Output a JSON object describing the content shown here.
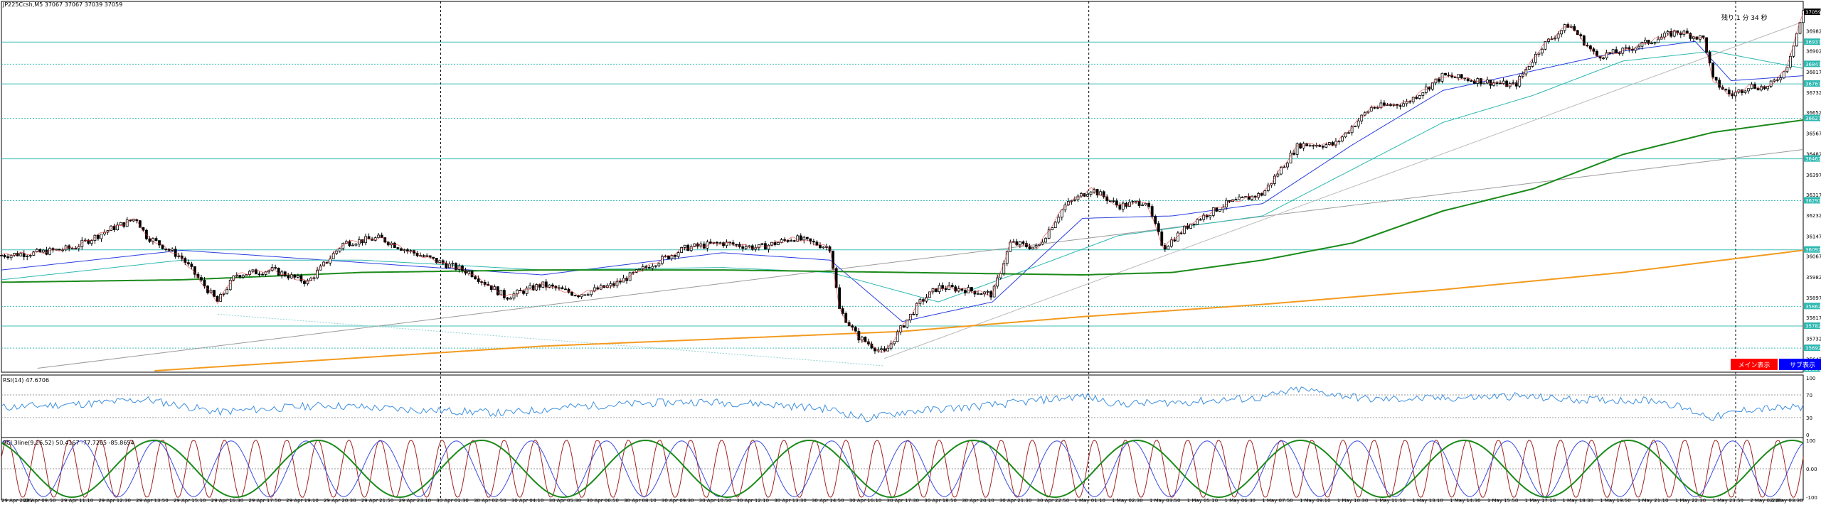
{
  "main_title": "JP225Ccsh,M5  37067 37067 37039 37059",
  "countdown": "残り 1 分 34 秒",
  "rsi_title": "RSI(14) 47.6706",
  "stoch_title": "RCI 3line(9,26,52) 50.4167 -77.7265 -85.8654",
  "colors": {
    "accent_teal": "#2bb7b0",
    "green_ma": "#1a8a1a",
    "orange_ma": "#f39a1d",
    "blue_ma": "#2a3ee0",
    "rsi_line": "#3d8fe0",
    "red_button": "#ff0000",
    "blue_button": "#0000ff",
    "current_price_bg": "#000000"
  },
  "price_axis": {
    "labels": [
      "37067",
      "36982",
      "36902",
      "36817",
      "36732",
      "36652",
      "36567",
      "36482",
      "36397",
      "36317",
      "36232",
      "36147",
      "36067",
      "35982",
      "35897",
      "35817",
      "35732",
      "35647"
    ],
    "highlighted": [
      "37059",
      "36937",
      "36847",
      "36767",
      "36627",
      "36462",
      "36292",
      "36092",
      "35862",
      "35782",
      "35692",
      "35607"
    ],
    "current_price": "37059",
    "min": 35600,
    "max": 37085
  },
  "rsi_axis": {
    "labels": [
      "100",
      "70",
      "30",
      "0"
    ],
    "levels": [
      100,
      70,
      30,
      0
    ]
  },
  "stoch_axis": {
    "labels": [
      "100",
      "0.00",
      "-100"
    ],
    "levels": [
      100,
      0,
      -100
    ]
  },
  "time_axis": [
    "29 Apr 2025",
    "29 Apr 09:50",
    "29 Apr 11:10",
    "29 Apr 12:30",
    "29 Apr 13:50",
    "29 Apr 15:10",
    "29 Apr 16:30",
    "29 Apr 17:50",
    "29 Apr 19:10",
    "29 Apr 20:30",
    "29 Apr 21:50",
    "29 Apr 23:10",
    "30 Apr 01:30",
    "30 Apr 02:50",
    "30 Apr 04:10",
    "30 Apr 05:30",
    "30 Apr 06:50",
    "30 Apr 08:10",
    "30 Apr 09:30",
    "30 Apr 10:50",
    "30 Apr 12:10",
    "30 Apr 13:30",
    "30 Apr 14:50",
    "30 Apr 16:10",
    "30 Apr 17:30",
    "30 Apr 18:50",
    "30 Apr 20:10",
    "30 Apr 21:30",
    "30 Apr 22:50",
    "1 May 01:10",
    "1 May 02:30",
    "1 May 03:50",
    "1 May 05:10",
    "1 May 06:30",
    "1 May 07:50",
    "1 May 09:10",
    "1 May 10:30",
    "1 May 11:50",
    "1 May 13:10",
    "1 May 14:30",
    "1 May 15:50",
    "1 May 17:10",
    "1 May 18:30",
    "1 May 19:50",
    "1 May 21:10",
    "1 May 22:30",
    "1 May 23:50",
    "2 May 02:10",
    "2 May 03:30"
  ],
  "buttons": {
    "main": "メイン表示",
    "sub": "サブ表示"
  },
  "chart_data": {
    "type": "candlestick",
    "timeframe": "M5",
    "symbol": "JP225Ccsh",
    "y_range": [
      35600,
      37085
    ],
    "close_path": [
      [
        0,
        36070
      ],
      [
        0.02,
        36080
      ],
      [
        0.04,
        36100
      ],
      [
        0.06,
        36175
      ],
      [
        0.075,
        36220
      ],
      [
        0.08,
        36150
      ],
      [
        0.1,
        36060
      ],
      [
        0.12,
        35880
      ],
      [
        0.13,
        35990
      ],
      [
        0.15,
        36010
      ],
      [
        0.17,
        35960
      ],
      [
        0.19,
        36120
      ],
      [
        0.21,
        36140
      ],
      [
        0.225,
        36090
      ],
      [
        0.24,
        36050
      ],
      [
        0.26,
        36000
      ],
      [
        0.28,
        35900
      ],
      [
        0.3,
        35950
      ],
      [
        0.32,
        35910
      ],
      [
        0.34,
        35950
      ],
      [
        0.36,
        36030
      ],
      [
        0.38,
        36100
      ],
      [
        0.4,
        36120
      ],
      [
        0.42,
        36100
      ],
      [
        0.44,
        36140
      ],
      [
        0.46,
        36100
      ],
      [
        0.465,
        35850
      ],
      [
        0.475,
        35740
      ],
      [
        0.49,
        35670
      ],
      [
        0.5,
        35780
      ],
      [
        0.51,
        35880
      ],
      [
        0.52,
        35940
      ],
      [
        0.535,
        35930
      ],
      [
        0.55,
        35910
      ],
      [
        0.56,
        36120
      ],
      [
        0.575,
        36100
      ],
      [
        0.59,
        36270
      ],
      [
        0.605,
        36340
      ],
      [
        0.62,
        36270
      ],
      [
        0.635,
        36290
      ],
      [
        0.645,
        36100
      ],
      [
        0.66,
        36200
      ],
      [
        0.68,
        36280
      ],
      [
        0.7,
        36320
      ],
      [
        0.72,
        36520
      ],
      [
        0.74,
        36520
      ],
      [
        0.76,
        36670
      ],
      [
        0.78,
        36690
      ],
      [
        0.8,
        36800
      ],
      [
        0.82,
        36780
      ],
      [
        0.84,
        36760
      ],
      [
        0.855,
        36920
      ],
      [
        0.87,
        37010
      ],
      [
        0.885,
        36880
      ],
      [
        0.9,
        36900
      ],
      [
        0.915,
        36940
      ],
      [
        0.93,
        36980
      ],
      [
        0.945,
        36950
      ],
      [
        0.95,
        36780
      ],
      [
        0.96,
        36720
      ],
      [
        0.97,
        36760
      ],
      [
        0.98,
        36750
      ],
      [
        0.99,
        36820
      ],
      [
        1.0,
        37059
      ]
    ],
    "moving_averages": [
      {
        "points": [
          [
            0,
            36010
          ],
          [
            0.1,
            36090
          ],
          [
            0.2,
            36040
          ],
          [
            0.3,
            35990
          ],
          [
            0.4,
            36080
          ],
          [
            0.46,
            36050
          ],
          [
            0.5,
            35800
          ],
          [
            0.55,
            35880
          ],
          [
            0.6,
            36220
          ],
          [
            0.65,
            36230
          ],
          [
            0.7,
            36280
          ],
          [
            0.75,
            36520
          ],
          [
            0.8,
            36740
          ],
          [
            0.85,
            36820
          ],
          [
            0.9,
            36900
          ],
          [
            0.94,
            36940
          ],
          [
            0.96,
            36780
          ],
          [
            1.0,
            36800
          ]
        ]
      },
      {
        "points": [
          [
            0,
            35970
          ],
          [
            0.1,
            36050
          ],
          [
            0.2,
            36050
          ],
          [
            0.3,
            36010
          ],
          [
            0.4,
            36020
          ],
          [
            0.46,
            36000
          ],
          [
            0.52,
            35880
          ],
          [
            0.58,
            36040
          ],
          [
            0.62,
            36150
          ],
          [
            0.7,
            36230
          ],
          [
            0.8,
            36610
          ],
          [
            0.85,
            36720
          ],
          [
            0.9,
            36860
          ],
          [
            0.95,
            36900
          ],
          [
            1.0,
            36830
          ]
        ]
      },
      {
        "points": [
          [
            0,
            35960
          ],
          [
            0.1,
            35970
          ],
          [
            0.2,
            36000
          ],
          [
            0.3,
            36010
          ],
          [
            0.4,
            36010
          ],
          [
            0.5,
            36000
          ],
          [
            0.6,
            35990
          ],
          [
            0.65,
            36000
          ],
          [
            0.7,
            36050
          ],
          [
            0.75,
            36120
          ],
          [
            0.8,
            36250
          ],
          [
            0.85,
            36340
          ],
          [
            0.9,
            36480
          ],
          [
            0.95,
            36570
          ],
          [
            1.0,
            36620
          ]
        ]
      },
      {
        "points": [
          [
            0.085,
            35600
          ],
          [
            0.3,
            35700
          ],
          [
            0.5,
            35760
          ],
          [
            0.6,
            35820
          ],
          [
            0.7,
            35870
          ],
          [
            0.8,
            35930
          ],
          [
            0.9,
            36000
          ],
          [
            1.0,
            36090
          ]
        ]
      }
    ],
    "trend_lines": [
      {
        "from": [
          0.02,
          35610
        ],
        "to": [
          1.0,
          36500
        ]
      },
      {
        "from": [
          0.49,
          35650
        ],
        "to": [
          1.0,
          37020
        ]
      },
      {
        "from": [
          0.12,
          35830
        ],
        "to": [
          0.49,
          35620
        ]
      }
    ],
    "horizontal_levels": [
      36937,
      36847,
      36767,
      36627,
      36462,
      36292,
      36092,
      35862,
      35782,
      35692
    ],
    "vertical_markers": [
      "29 Apr 23:10",
      "30 Apr 22:50",
      "1 May 23:50"
    ],
    "rsi": {
      "period": 14,
      "value": 47.6706,
      "levels": [
        70,
        30
      ],
      "range": [
        0,
        100
      ],
      "path": [
        [
          0,
          48
        ],
        [
          0.05,
          55
        ],
        [
          0.08,
          62
        ],
        [
          0.12,
          40
        ],
        [
          0.18,
          52
        ],
        [
          0.22,
          45
        ],
        [
          0.28,
          38
        ],
        [
          0.32,
          50
        ],
        [
          0.38,
          58
        ],
        [
          0.42,
          55
        ],
        [
          0.46,
          45
        ],
        [
          0.48,
          28
        ],
        [
          0.5,
          40
        ],
        [
          0.55,
          52
        ],
        [
          0.6,
          68
        ],
        [
          0.62,
          54
        ],
        [
          0.66,
          58
        ],
        [
          0.7,
          65
        ],
        [
          0.72,
          80
        ],
        [
          0.76,
          62
        ],
        [
          0.8,
          64
        ],
        [
          0.84,
          68
        ],
        [
          0.87,
          62
        ],
        [
          0.92,
          60
        ],
        [
          0.95,
          30
        ],
        [
          0.97,
          45
        ],
        [
          1.0,
          47.67
        ]
      ]
    },
    "rci": {
      "periods": [
        9,
        26,
        52
      ],
      "values": [
        50.4167,
        -77.7265,
        -85.8654
      ],
      "range": [
        -100,
        100
      ]
    }
  }
}
